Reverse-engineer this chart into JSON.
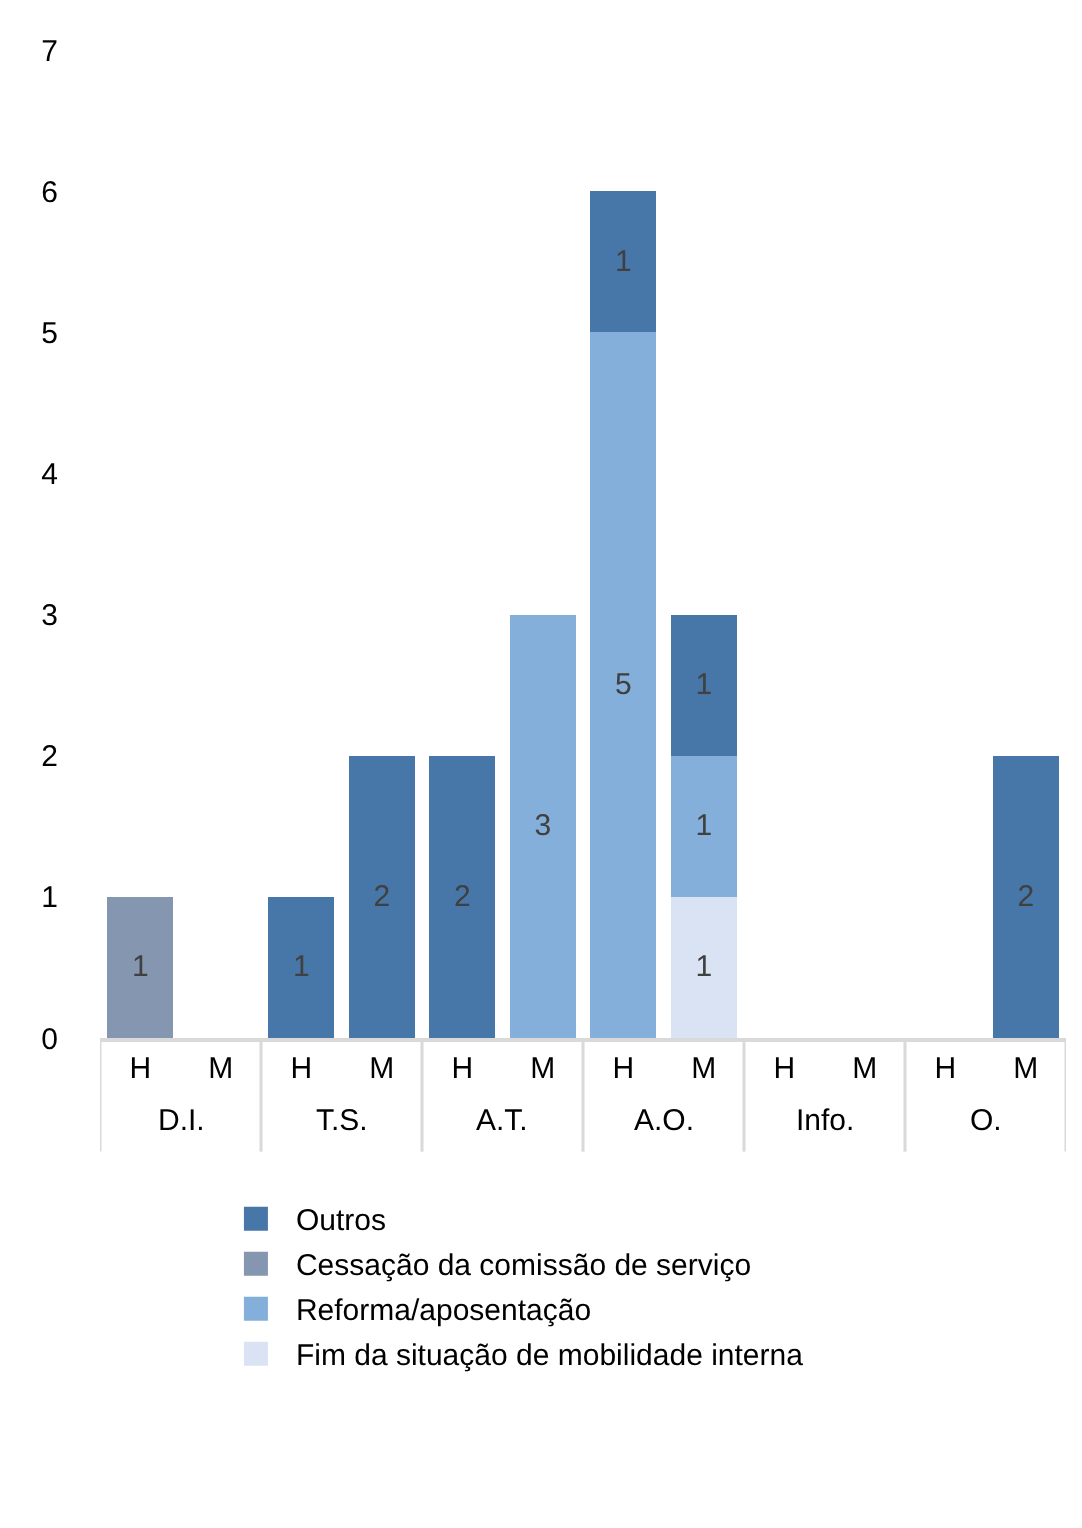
{
  "chart_data": {
    "type": "bar",
    "stacked": true,
    "categories": [
      "H",
      "M",
      "H",
      "M",
      "H",
      "M",
      "H",
      "M",
      "H",
      "M",
      "H",
      "M"
    ],
    "annotations": [
      "D.I.",
      "T.S.",
      "A.T.",
      "A.O.",
      "Info.",
      "O."
    ],
    "series": [
      {
        "name": "Fim da situação de mobilidade interna",
        "color": "#dae3f3",
        "values": [
          null,
          null,
          null,
          null,
          null,
          null,
          null,
          1,
          null,
          null,
          null,
          null
        ]
      },
      {
        "name": "Reforma/aposentação",
        "color": "#84afdb",
        "values": [
          null,
          null,
          null,
          null,
          null,
          3,
          5,
          1,
          null,
          null,
          null,
          null
        ]
      },
      {
        "name": "Cessação da comissão de serviço",
        "color": "#8496b0",
        "values": [
          1,
          null,
          null,
          null,
          null,
          null,
          null,
          null,
          null,
          null,
          null,
          null
        ]
      },
      {
        "name": "Outros",
        "color": "#4677a8",
        "values": [
          null,
          null,
          1,
          2,
          2,
          null,
          1,
          1,
          null,
          null,
          null,
          2
        ]
      }
    ],
    "ylim": [
      0,
      7
    ],
    "yticks": [
      0,
      1,
      2,
      3,
      4,
      5,
      6,
      7
    ],
    "grid": false,
    "legend": "bottom",
    "data_labels": true
  }
}
